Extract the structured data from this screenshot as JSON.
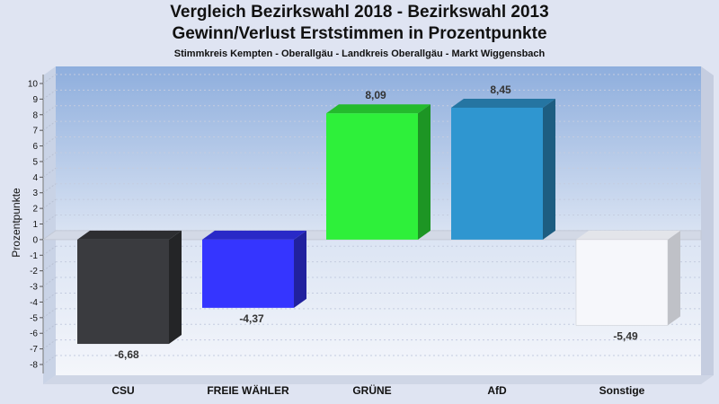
{
  "chart_data": {
    "type": "bar",
    "title": "Vergleich Bezirkswahl 2018 - Bezirkswahl 2013",
    "subtitle_line": "Gewinn/Verlust Erststimmen in Prozentpunkte",
    "caption": "Stimmkreis Kempten - Oberallgäu - Landkreis Oberallgäu - Markt Wiggensbach",
    "ylabel": "Prozentpunkte",
    "ylim": [
      -8,
      10
    ],
    "yticks": [
      "10",
      "9",
      "8",
      "7",
      "6",
      "5",
      "4",
      "3",
      "2",
      "1",
      "0",
      "-1",
      "-2",
      "-3",
      "-4",
      "-5",
      "-6",
      "-7",
      "-8"
    ],
    "categories": [
      "CSU",
      "FREIE WÄHLER",
      "GRÜNE",
      "AfD",
      "Sonstige"
    ],
    "values": [
      -6.68,
      -4.37,
      8.09,
      8.45,
      -5.49
    ],
    "value_labels": [
      "-6,68",
      "-4,37",
      "8,09",
      "8,45",
      "-5,49"
    ],
    "colors": [
      "#3a3b3f",
      "#3535ff",
      "#2ef03a",
      "#2f96d0",
      "#f6f7fb"
    ],
    "grid": true
  }
}
